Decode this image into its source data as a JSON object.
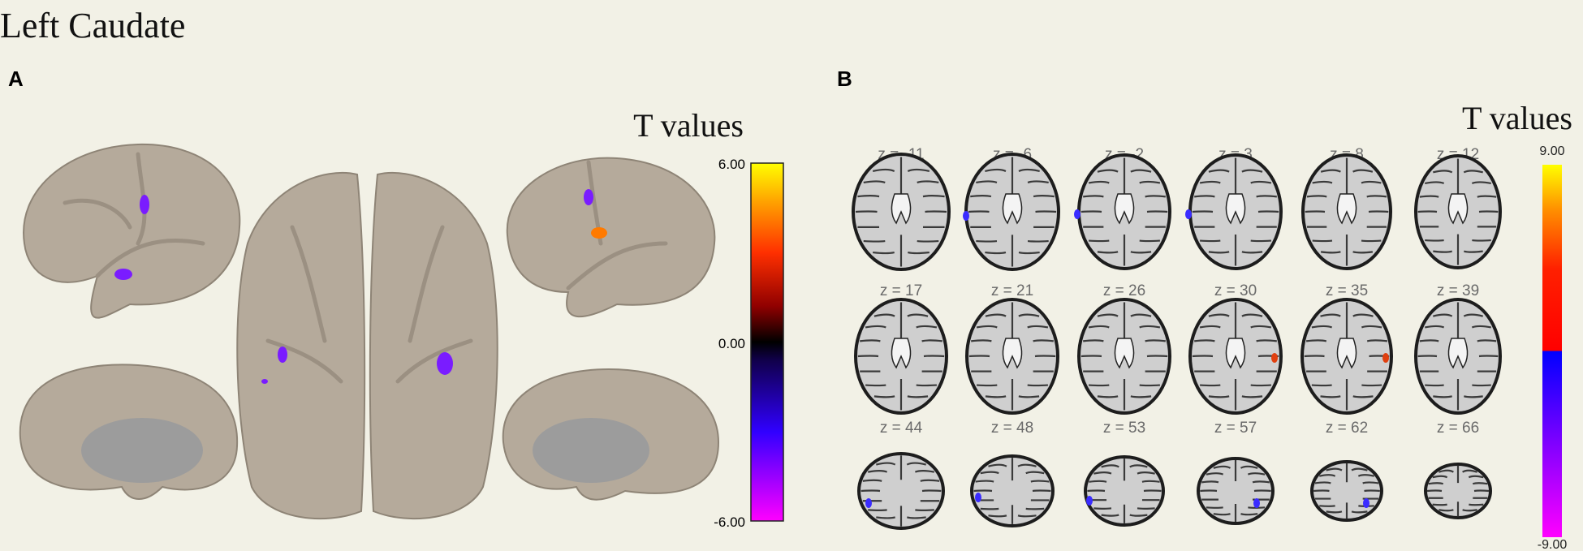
{
  "title": "Left Caudate",
  "panels": [
    {
      "label": "A",
      "colorbar": {
        "title": "T values",
        "max": "6.00",
        "mid": "0.00",
        "min": "-6.00"
      }
    },
    {
      "label": "B",
      "colorbar": {
        "title": "T values",
        "max": "9.00",
        "min": "-9.00"
      },
      "slices": [
        "z = -11",
        "z = -6",
        "z = -2",
        "z = 3",
        "z = 8",
        "z = 12",
        "z = 17",
        "z = 21",
        "z = 26",
        "z = 30",
        "z = 35",
        "z = 39",
        "z = 44",
        "z = 48",
        "z = 53",
        "z = 57",
        "z = 62",
        "z = 66"
      ]
    }
  ]
}
